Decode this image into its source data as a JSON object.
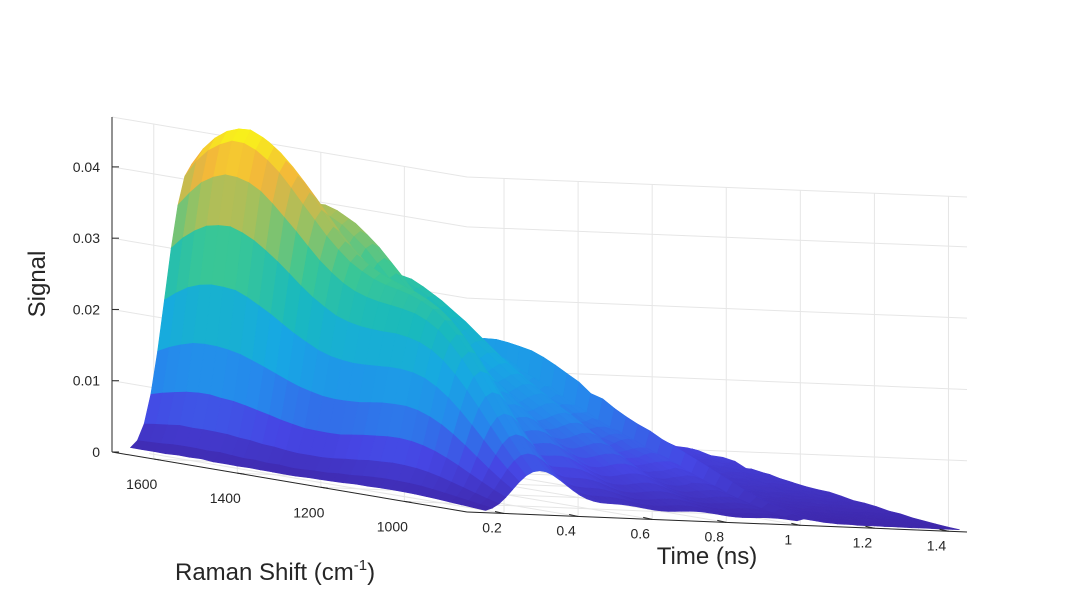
{
  "chart_data": {
    "type": "surface",
    "x_axis": {
      "label": "Raman Shift (cm",
      "label_sup": "-1",
      "label_close": ")",
      "range": [
        850,
        1700
      ],
      "ticks": [
        1600,
        1400,
        1200,
        1000
      ]
    },
    "y_axis": {
      "label": "Time (ns)",
      "range": [
        0.1,
        1.45
      ],
      "ticks": [
        0.2,
        0.4,
        0.6,
        0.8,
        1,
        1.2,
        1.4
      ]
    },
    "z_axis": {
      "label": "Signal",
      "range": [
        0,
        0.047
      ],
      "ticks": [
        0,
        0.01,
        0.02,
        0.03,
        0.04
      ]
    },
    "peaks": [
      {
        "raman_shift": 1580,
        "time": 0.31,
        "signal": 0.047
      },
      {
        "raman_shift": 1580,
        "time": 0.52,
        "signal": 0.035
      },
      {
        "raman_shift": 1580,
        "time": 0.72,
        "signal": 0.026
      },
      {
        "raman_shift": 1580,
        "time": 0.93,
        "signal": 0.017
      },
      {
        "raman_shift": 1050,
        "time": 0.25,
        "signal": 0.017
      }
    ],
    "tail_signal_at_time_1_4": 0.005,
    "colormap": "parula",
    "grid": true
  }
}
